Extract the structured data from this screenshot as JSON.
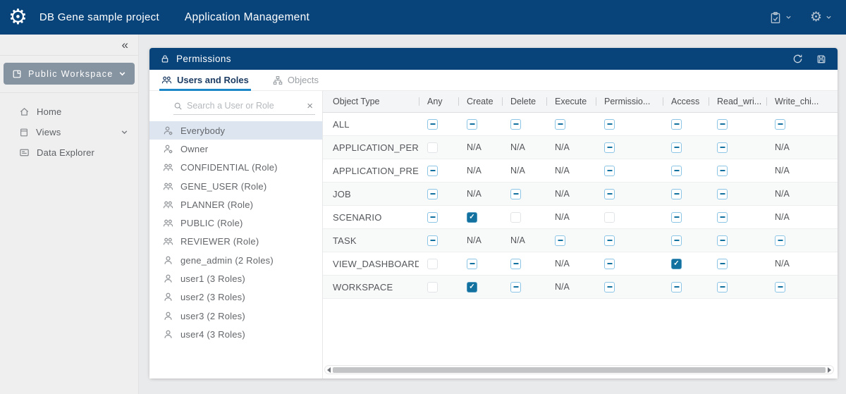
{
  "colors": {
    "navy": "#084379",
    "accent_blue": "#1b87c9",
    "checkbox_checked": "#12719f",
    "selected_item_bg": "#dde5f1",
    "workspace_button_bg": "#8693a0"
  },
  "header": {
    "logo_icon": "gear-logo-icon",
    "project_title": "DB Gene sample project",
    "page_title": "Application Management",
    "right_icons": [
      "clipboard-check-icon",
      "chevron-down-icon",
      "gear-icon",
      "chevron-down-icon"
    ]
  },
  "sidebar": {
    "collapse_icon": "«",
    "workspace_button": {
      "label": "Public Workspace",
      "icon": "workspace-icon",
      "chevron": "chevron-down-icon"
    },
    "items": [
      {
        "label": "Home",
        "icon": "home-icon"
      },
      {
        "label": "Views",
        "icon": "document-icon",
        "chevron": "chevron-down-icon"
      },
      {
        "label": "Data Explorer",
        "icon": "monitor-icon"
      }
    ]
  },
  "panel": {
    "title": "Permissions",
    "title_icon": "lock-icon",
    "actions": [
      "refresh-icon",
      "save-icon"
    ],
    "tabs": [
      {
        "label": "Users and Roles",
        "icon": "users-group",
        "active": true
      },
      {
        "label": "Objects",
        "icon": "sitemap",
        "active": false
      }
    ],
    "search": {
      "placeholder": "Search a User or Role",
      "icon": "search-icon",
      "clear_icon": "×"
    },
    "principals": [
      {
        "label": "Everybody",
        "icon": "user-gear",
        "selected": true
      },
      {
        "label": "Owner",
        "icon": "user-gear",
        "selected": false
      },
      {
        "label": "CONFIDENTIAL (Role)",
        "icon": "users-group",
        "selected": false
      },
      {
        "label": "GENE_USER (Role)",
        "icon": "users-group",
        "selected": false
      },
      {
        "label": "PLANNER (Role)",
        "icon": "users-group",
        "selected": false
      },
      {
        "label": "PUBLIC (Role)",
        "icon": "users-group",
        "selected": false
      },
      {
        "label": "REVIEWER (Role)",
        "icon": "users-group",
        "selected": false
      },
      {
        "label": "gene_admin (2 Roles)",
        "icon": "user",
        "selected": false
      },
      {
        "label": "user1 (3 Roles)",
        "icon": "user",
        "selected": false
      },
      {
        "label": "user2 (3 Roles)",
        "icon": "user",
        "selected": false
      },
      {
        "label": "user3 (2 Roles)",
        "icon": "user",
        "selected": false
      },
      {
        "label": "user4 (3 Roles)",
        "icon": "user",
        "selected": false
      }
    ],
    "table": {
      "na_label": "N/A",
      "columns": [
        "Object Type",
        "Any",
        "Create",
        "Delete",
        "Execute",
        "Permissio...",
        "Access",
        "Read_wri...",
        "Write_chi..."
      ],
      "rows": [
        {
          "object_type": "ALL",
          "cells": [
            "indeterminate",
            "indeterminate",
            "indeterminate",
            "indeterminate",
            "indeterminate",
            "indeterminate",
            "indeterminate",
            "indeterminate"
          ]
        },
        {
          "object_type": "APPLICATION_PERM",
          "cells": [
            "unchecked",
            "na",
            "na",
            "na",
            "indeterminate",
            "indeterminate",
            "indeterminate",
            "na"
          ]
        },
        {
          "object_type": "APPLICATION_PREF",
          "cells": [
            "indeterminate",
            "na",
            "na",
            "na",
            "indeterminate",
            "indeterminate",
            "indeterminate",
            "na"
          ]
        },
        {
          "object_type": "JOB",
          "cells": [
            "indeterminate",
            "na",
            "indeterminate",
            "na",
            "indeterminate",
            "indeterminate",
            "indeterminate",
            "na"
          ]
        },
        {
          "object_type": "SCENARIO",
          "cells": [
            "indeterminate",
            "checked",
            "unchecked",
            "na",
            "unchecked",
            "indeterminate",
            "indeterminate",
            "na"
          ]
        },
        {
          "object_type": "TASK",
          "cells": [
            "indeterminate",
            "na",
            "na",
            "indeterminate",
            "indeterminate",
            "indeterminate",
            "indeterminate",
            "indeterminate"
          ]
        },
        {
          "object_type": "VIEW_DASHBOARD",
          "cells": [
            "unchecked",
            "indeterminate",
            "indeterminate",
            "na",
            "indeterminate",
            "checked",
            "indeterminate",
            "na"
          ]
        },
        {
          "object_type": "WORKSPACE",
          "cells": [
            "unchecked",
            "checked",
            "indeterminate",
            "na",
            "indeterminate",
            "indeterminate",
            "indeterminate",
            "indeterminate"
          ]
        }
      ]
    }
  }
}
